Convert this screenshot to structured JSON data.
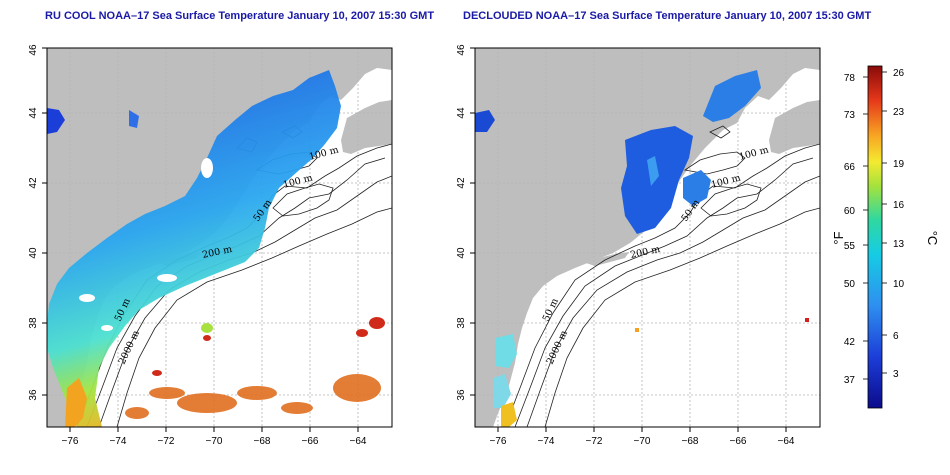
{
  "panels": [
    {
      "title": "RU COOL NOAA–17 Sea Surface Temperature January 10, 2007 15:30 GMT"
    },
    {
      "title": "DECLOUDED NOAA–17 Sea Surface Temperature January 10, 2007 15:30 GMT"
    }
  ],
  "axes": {
    "x_ticks": [
      "−76",
      "−74",
      "−72",
      "−70",
      "−68",
      "−66",
      "−64"
    ],
    "y_ticks": [
      "36",
      "38",
      "40",
      "42",
      "44",
      "46"
    ]
  },
  "contours": {
    "labels": [
      "100 m",
      "100 m",
      "50 m",
      "200 m",
      "50 m",
      "2000 m"
    ]
  },
  "colorbar": {
    "f_unit": "°F",
    "c_unit": "°C",
    "f_ticks": [
      "78",
      "73",
      "66",
      "60",
      "55",
      "50",
      "42",
      "37"
    ],
    "c_ticks": [
      "26",
      "23",
      "19",
      "16",
      "13",
      "10",
      "6",
      "3"
    ]
  },
  "colors": {
    "land": "#bebebe",
    "title": "#1a1aa6",
    "grid": "#b4b4b4"
  }
}
